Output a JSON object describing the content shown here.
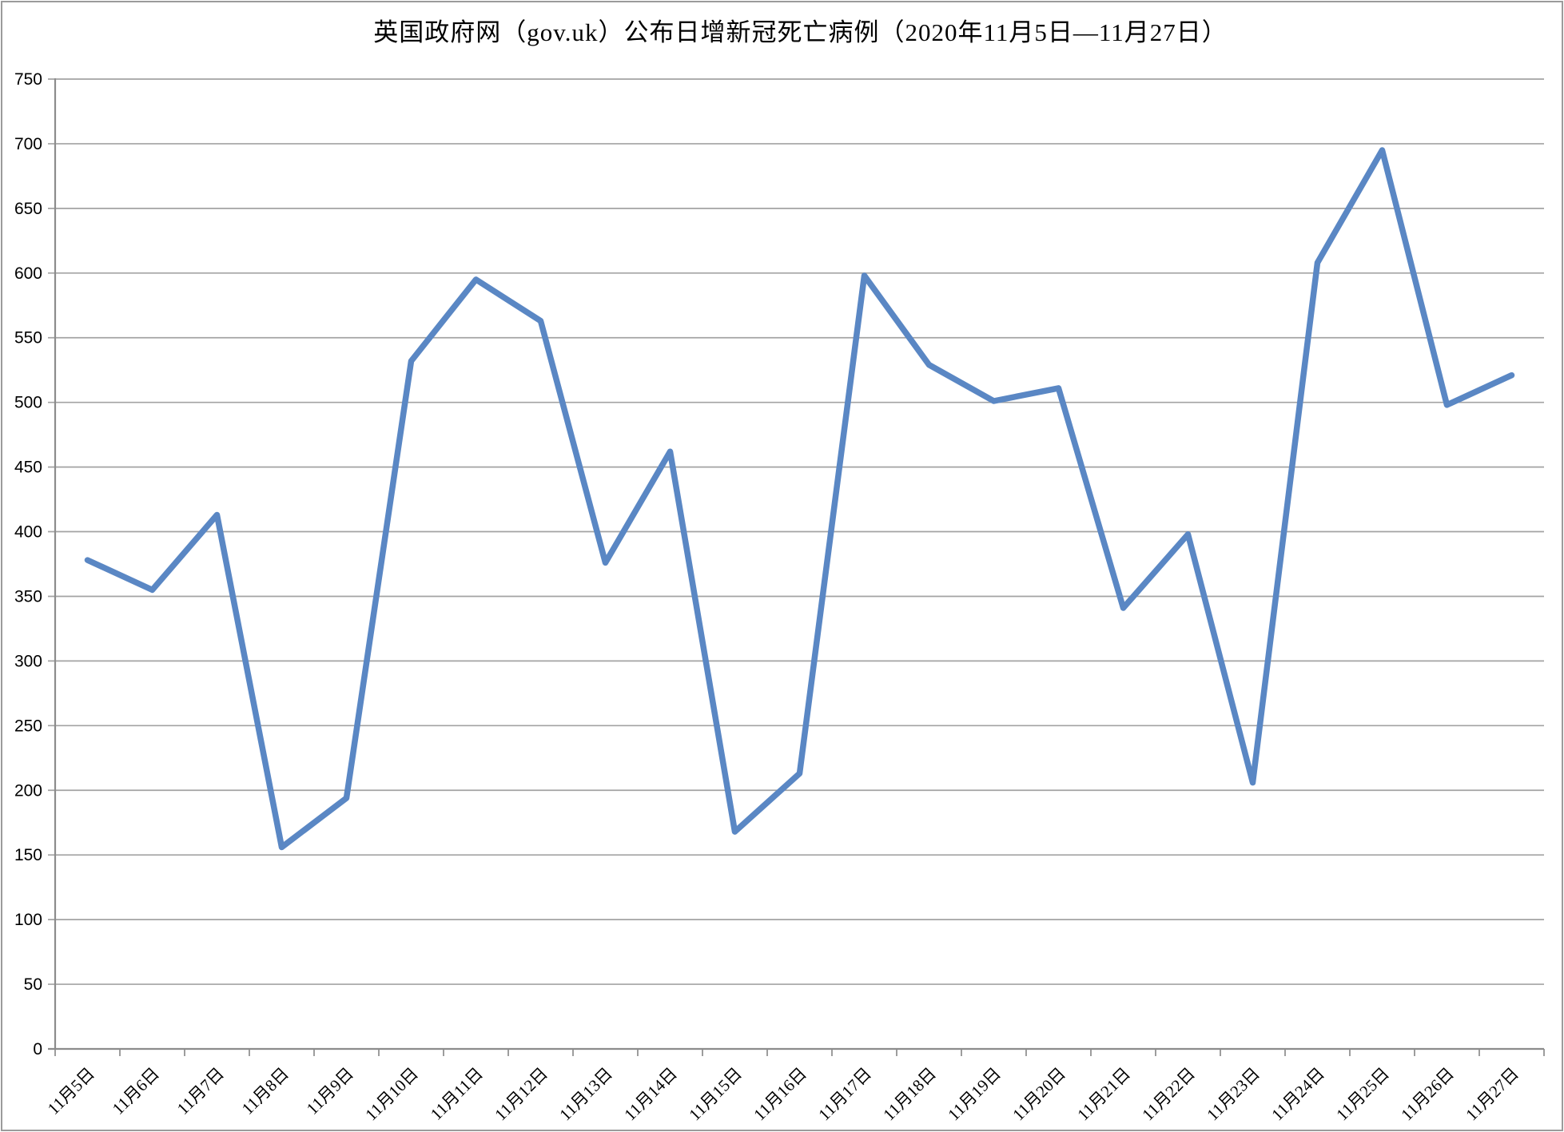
{
  "page": {
    "background": "#ffffff",
    "frame_border_color": "#9b9b9b"
  },
  "chart_data": {
    "type": "line",
    "title": "英国政府网（gov.uk）公布日增新冠死亡病例（2020年11月5日—11月27日）",
    "xlabel": "",
    "ylabel": "",
    "legend": "none",
    "grid": "horizontal",
    "ylim": [
      0,
      750
    ],
    "ytick_interval": 50,
    "ytick_labels": [
      "0",
      "50",
      "100",
      "150",
      "200",
      "250",
      "300",
      "350",
      "400",
      "450",
      "500",
      "550",
      "600",
      "650",
      "700",
      "750"
    ],
    "categories": [
      "11月5日",
      "11月6日",
      "11月7日",
      "11月8日",
      "11月9日",
      "11月10日",
      "11月11日",
      "11月12日",
      "11月13日",
      "11月14日",
      "11月15日",
      "11月16日",
      "11月17日",
      "11月18日",
      "11月19日",
      "11月20日",
      "11月21日",
      "11月22日",
      "11月23日",
      "11月24日",
      "11月25日",
      "11月26日",
      "11月27日"
    ],
    "series": [
      {
        "name": "日增新冠死亡病例",
        "values": [
          378,
          355,
          413,
          156,
          194,
          532,
          595,
          563,
          376,
          462,
          168,
          213,
          598,
          529,
          501,
          511,
          341,
          398,
          206,
          608,
          695,
          498,
          521
        ]
      }
    ],
    "colors": {
      "line": "#5a87c4",
      "gridline": "#a3a3a3",
      "axis": "#8c8c8c",
      "text": "#000000"
    }
  }
}
